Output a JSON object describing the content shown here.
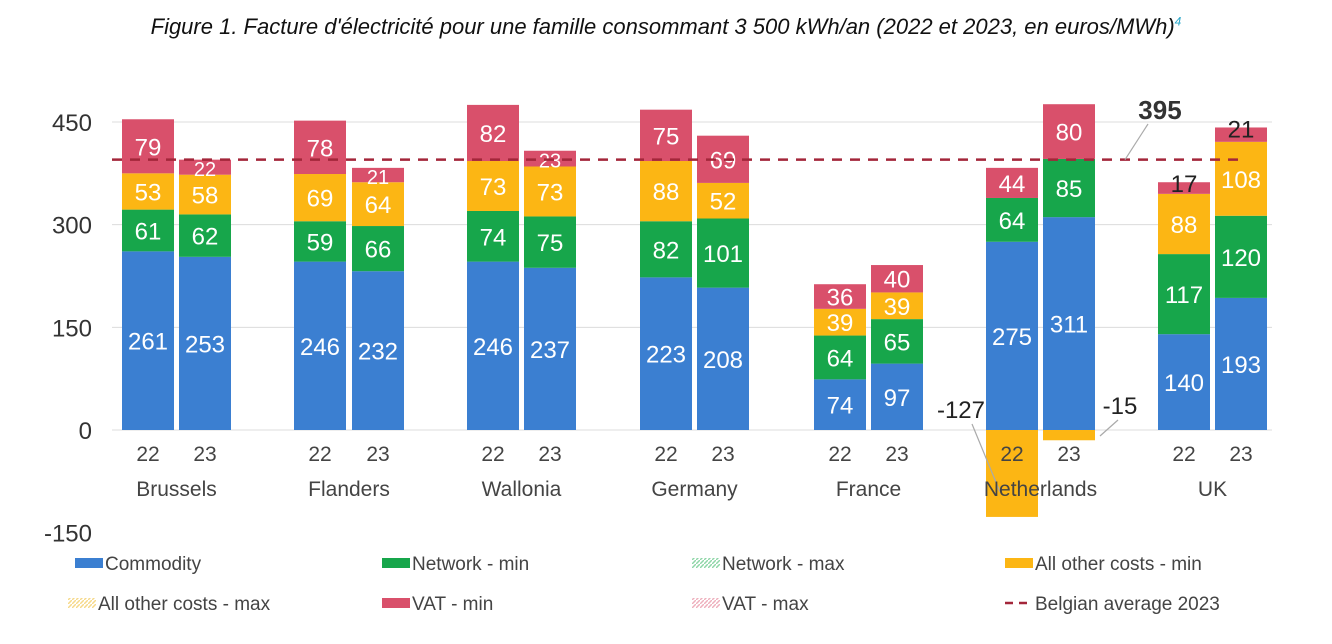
{
  "title": "Figure 1. Facture d'électricité pour une famille consommant 3 500 kWh/an (2022 et 2023, en euros/MWh)",
  "title_footnote": "4",
  "chart_data": {
    "type": "bar",
    "stacked": true,
    "ylim": [
      -150,
      450
    ],
    "yticks": [
      450,
      300,
      150,
      0,
      -150
    ],
    "grid": true,
    "legend_position": "bottom",
    "groups": [
      "Brussels",
      "Flanders",
      "Wallonia",
      "Germany",
      "France",
      "Netherlands",
      "UK"
    ],
    "sub_categories": [
      "22",
      "23"
    ],
    "series": [
      {
        "name": "Commodity",
        "color": "#3b7fd1",
        "values": [
          [
            261,
            253
          ],
          [
            246,
            232
          ],
          [
            246,
            237
          ],
          [
            223,
            208
          ],
          [
            74,
            97
          ],
          [
            275,
            311
          ],
          [
            140,
            193
          ]
        ]
      },
      {
        "name": "Network - min",
        "color": "#17a64b",
        "values": [
          [
            61,
            62
          ],
          [
            59,
            66
          ],
          [
            74,
            75
          ],
          [
            82,
            101
          ],
          [
            64,
            65
          ],
          [
            64,
            85
          ],
          [
            117,
            120
          ]
        ]
      },
      {
        "name": "All other costs - min",
        "color": "#fcb614",
        "values": [
          [
            53,
            58
          ],
          [
            69,
            64
          ],
          [
            73,
            73
          ],
          [
            88,
            52
          ],
          [
            39,
            39
          ],
          [
            -127,
            -15
          ],
          [
            88,
            108
          ]
        ]
      },
      {
        "name": "VAT - min",
        "color": "#d9506b",
        "values": [
          [
            79,
            22
          ],
          [
            78,
            21
          ],
          [
            82,
            23
          ],
          [
            75,
            69
          ],
          [
            36,
            40
          ],
          [
            44,
            80
          ],
          [
            17,
            21
          ]
        ]
      }
    ],
    "legend": [
      {
        "label": "Commodity",
        "color": "#3b7fd1",
        "style": "solid"
      },
      {
        "label": "Network - min",
        "color": "#17a64b",
        "style": "solid"
      },
      {
        "label": "Network - max",
        "color": "#8fd6a8",
        "style": "hatched"
      },
      {
        "label": "All other costs - min",
        "color": "#fcb614",
        "style": "solid"
      },
      {
        "label": "All other costs - max",
        "color": "#f6d98a",
        "style": "hatched"
      },
      {
        "label": "VAT - min",
        "color": "#d9506b",
        "style": "solid"
      },
      {
        "label": "VAT - max",
        "color": "#eeb0bd",
        "style": "hatched"
      },
      {
        "label": "Belgian average 2023",
        "color": "#a3263a",
        "style": "dashed"
      }
    ],
    "reference_line": {
      "name": "Belgian average 2023",
      "value": 395,
      "label": "395",
      "color": "#a3263a"
    }
  }
}
